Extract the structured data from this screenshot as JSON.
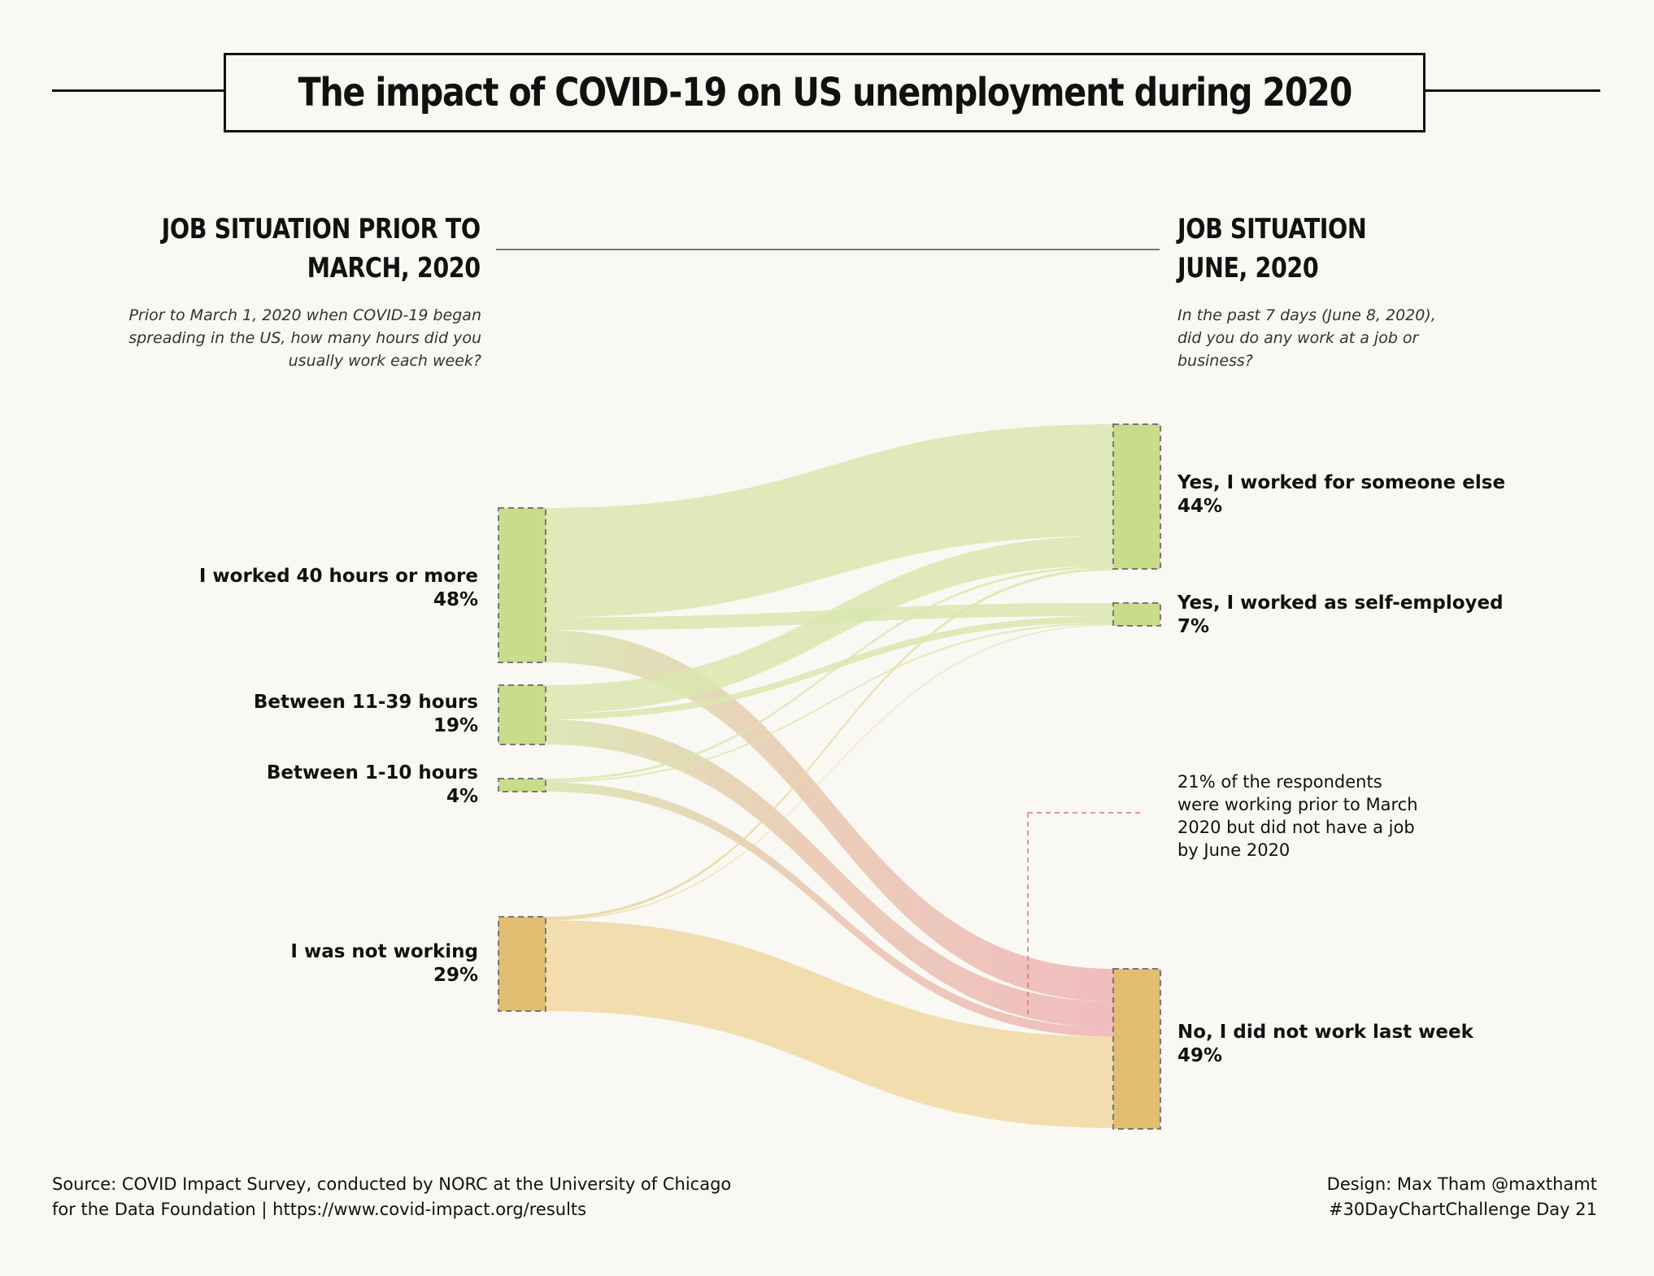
{
  "title": "The impact of COVID-19 on US unemployment during 2020",
  "left_heading": [
    "JOB SITUATION PRIOR TO",
    "MARCH, 2020"
  ],
  "left_subtitle": "Prior to March 1, 2020 when COVID-19 began spreading in the US, how many hours did you usually work each week?",
  "right_heading": [
    "JOB SITUATION",
    "JUNE, 2020"
  ],
  "right_subtitle": "In the past 7 days (June 8, 2020), did you do any work at a job or business?",
  "annotation": "21% of the respondents were working prior to March 2020 but did not have a job by June 2020",
  "footer_left": [
    "Source: COVID Impact Survey, conducted by NORC at the University of Chicago",
    "for the Data Foundation | https://www.covid-impact.org/results"
  ],
  "footer_right": [
    "Design: Max Tham @maxthamt",
    "#30DayChartChallenge Day 21"
  ],
  "colors": {
    "background": "#faf8f3",
    "working_node": "#c8dc8a",
    "not_working_node": "#e0bd70",
    "working_flow": "#d9e6ae",
    "not_working_flow": "#efd9a6",
    "lost_job_flow": "#efb4b8",
    "annotation_line": "#e0707a"
  },
  "chart_data": {
    "type": "sankey",
    "sources": [
      {
        "label": "I worked 40 hours or more",
        "value_label": "48%",
        "value": 48
      },
      {
        "label": "Between 11-39 hours",
        "value_label": "19%",
        "value": 19
      },
      {
        "label": "Between 1-10 hours",
        "value_label": "4%",
        "value": 4
      },
      {
        "label": "I was not working",
        "value_label": "29%",
        "value": 29
      }
    ],
    "targets": [
      {
        "label": "Yes, I worked for someone else",
        "value_label": "44%",
        "value": 44
      },
      {
        "label": "Yes, I worked as self-employed",
        "value_label": "7%",
        "value": 7
      },
      {
        "label": "No, I did not work last week",
        "value_label": "49%",
        "value": 49
      }
    ],
    "flows": [
      {
        "from": 0,
        "to": 0,
        "value": 34
      },
      {
        "from": 0,
        "to": 1,
        "value": 4
      },
      {
        "from": 0,
        "to": 2,
        "value": 10
      },
      {
        "from": 1,
        "to": 0,
        "value": 9
      },
      {
        "from": 1,
        "to": 1,
        "value": 2
      },
      {
        "from": 1,
        "to": 2,
        "value": 8
      },
      {
        "from": 2,
        "to": 0,
        "value": 0.7
      },
      {
        "from": 2,
        "to": 1,
        "value": 0.5
      },
      {
        "from": 2,
        "to": 2,
        "value": 2.8
      },
      {
        "from": 3,
        "to": 0,
        "value": 0.8
      },
      {
        "from": 3,
        "to": 1,
        "value": 0.3
      },
      {
        "from": 3,
        "to": 2,
        "value": 27.9
      }
    ]
  }
}
